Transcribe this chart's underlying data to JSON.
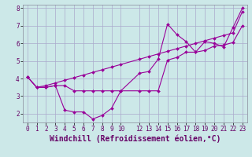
{
  "xlabel": "Windchill (Refroidissement éolien,°C)",
  "bg_color": "#cce8e8",
  "grid_color": "#aaaacc",
  "line_color": "#990099",
  "xlim": [
    -0.5,
    23.5
  ],
  "ylim": [
    1.5,
    8.2
  ],
  "xticks": [
    0,
    1,
    2,
    3,
    4,
    5,
    6,
    7,
    8,
    9,
    10,
    12,
    13,
    14,
    15,
    16,
    17,
    18,
    19,
    20,
    21,
    22,
    23
  ],
  "yticks": [
    2,
    3,
    4,
    5,
    6,
    7,
    8
  ],
  "line1_x": [
    0,
    1,
    2,
    3,
    4,
    5,
    6,
    7,
    8,
    9,
    10,
    12,
    13,
    14,
    15,
    16,
    17,
    18,
    19,
    20,
    21,
    22,
    23
  ],
  "line1_y": [
    4.1,
    3.5,
    3.5,
    3.6,
    3.6,
    3.3,
    3.3,
    3.3,
    3.3,
    3.3,
    3.3,
    3.3,
    3.3,
    3.3,
    5.05,
    5.2,
    5.5,
    5.5,
    5.6,
    5.85,
    5.9,
    6.05,
    7.0
  ],
  "line2_x": [
    0,
    1,
    2,
    3,
    4,
    5,
    6,
    7,
    8,
    9,
    10,
    12,
    13,
    14,
    15,
    16,
    17,
    18,
    19,
    20,
    21,
    22,
    23
  ],
  "line2_y": [
    4.1,
    3.5,
    3.5,
    3.6,
    2.2,
    2.1,
    2.1,
    1.7,
    1.9,
    2.3,
    3.3,
    4.3,
    4.4,
    5.1,
    7.1,
    6.5,
    6.1,
    5.5,
    6.1,
    6.0,
    5.8,
    6.9,
    8.0
  ],
  "line3_x": [
    0,
    1,
    2,
    3,
    4,
    5,
    6,
    7,
    8,
    9,
    10,
    12,
    13,
    14,
    15,
    16,
    17,
    18,
    19,
    20,
    21,
    22,
    23
  ],
  "line3_y": [
    4.1,
    3.5,
    3.6,
    3.75,
    3.9,
    4.05,
    4.2,
    4.35,
    4.5,
    4.65,
    4.8,
    5.1,
    5.25,
    5.4,
    5.55,
    5.7,
    5.85,
    6.0,
    6.15,
    6.3,
    6.45,
    6.6,
    7.8
  ],
  "font_family": "monospace",
  "tick_fontsize": 5.5,
  "xlabel_fontsize": 7.0
}
